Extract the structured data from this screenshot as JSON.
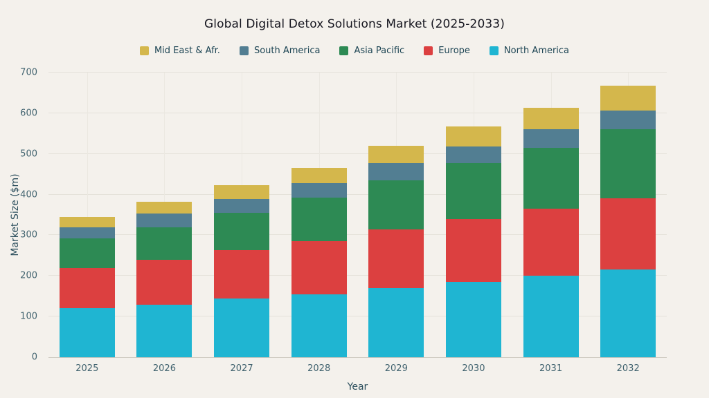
{
  "chart_data": {
    "type": "bar",
    "stacked": true,
    "title": "Global Digital Detox Solutions Market (2025-2033)",
    "xlabel": "Year",
    "ylabel": "Market Size ($m)",
    "ylim": [
      0,
      700
    ],
    "yticks": [
      0,
      100,
      200,
      300,
      400,
      500,
      600,
      700
    ],
    "grid": true,
    "legend_position": "top",
    "background_color": "#f4f1ec",
    "categories": [
      "2025",
      "2026",
      "2027",
      "2028",
      "2029",
      "2030",
      "2031",
      "2032"
    ],
    "series": [
      {
        "name": "North America",
        "color": "#1fb5d2",
        "values": [
          120,
          130,
          145,
          155,
          170,
          185,
          200,
          215
        ]
      },
      {
        "name": "Europe",
        "color": "#dc4040",
        "values": [
          100,
          110,
          118,
          130,
          145,
          155,
          165,
          175
        ]
      },
      {
        "name": "Asia Pacific",
        "color": "#2d8a54",
        "values": [
          73,
          80,
          92,
          108,
          120,
          138,
          150,
          170
        ]
      },
      {
        "name": "South America",
        "color": "#527e92",
        "values": [
          27,
          33,
          35,
          35,
          43,
          40,
          45,
          47
        ]
      },
      {
        "name": "Mid East & Afr.",
        "color": "#d4b74c",
        "values": [
          25,
          29,
          33,
          37,
          42,
          50,
          53,
          61
        ]
      }
    ],
    "legend_order": [
      "Mid East & Afr.",
      "South America",
      "Asia Pacific",
      "Europe",
      "North America"
    ]
  }
}
